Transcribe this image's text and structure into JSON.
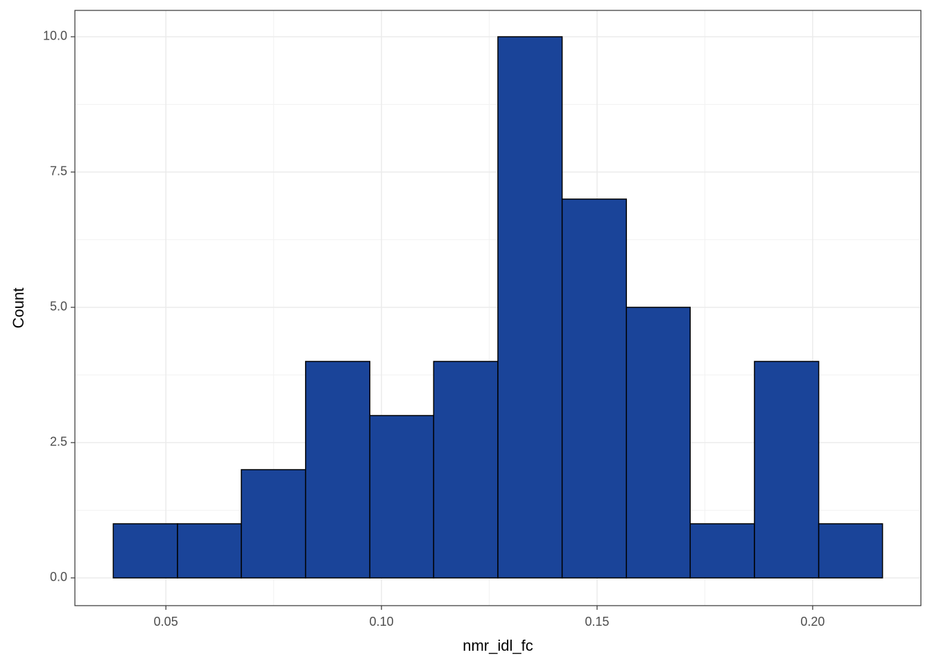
{
  "chart_data": {
    "type": "histogram",
    "x_label": "nmr_idl_fc",
    "y_label": "Count",
    "bins": [
      0.0378,
      0.0527,
      0.0675,
      0.0824,
      0.0973,
      0.1121,
      0.127,
      0.1419,
      0.1568,
      0.1716,
      0.1865,
      0.2014,
      0.2162
    ],
    "values": [
      1,
      1,
      2,
      4,
      3,
      4,
      10,
      7,
      5,
      1,
      4,
      1
    ],
    "color": "#1a4499",
    "xlim": [
      0.0289,
      0.2251
    ],
    "ylim": [
      -0.513,
      10.487
    ],
    "xticks": [
      0.05,
      {
        "value": 0.1,
        "label": "0.10"
      },
      0.15,
      {
        "value": 0.2,
        "label": "0.20"
      }
    ],
    "yticks": [
      {
        "value": 0,
        "label": "0.0"
      },
      2.5,
      {
        "value": 5,
        "label": "5.0"
      },
      7.5,
      {
        "value": 10,
        "label": "10.0"
      }
    ],
    "grid": true
  }
}
